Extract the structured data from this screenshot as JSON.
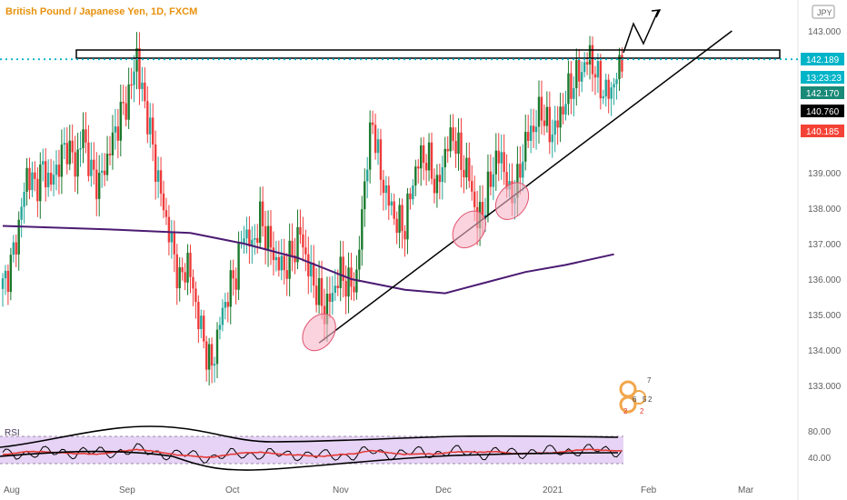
{
  "header": {
    "title": "British Pound / Japanese Yen, 1D, FXCM",
    "currency_badge": "JPY"
  },
  "colors": {
    "up": "#26a69a",
    "up_strong": "#1b7a2e",
    "down": "#ef3b3b",
    "ma": "#4b1a72",
    "resistance_line": "#00b4c8",
    "rsi_band": "#e6d3f5",
    "rsi_line": "#e53935"
  },
  "price_tags": {
    "last": "142.189",
    "countdown": "13:23:23",
    "bid": "142.170",
    "high": "140.760",
    "low": "140.185"
  },
  "rsi_pane": {
    "label": "RSI",
    "levels": [
      "80.00",
      "40.00"
    ]
  },
  "chart_data": {
    "type": "candlestick",
    "y_ticks": [
      143,
      142,
      141,
      140,
      139,
      138,
      137,
      136,
      135,
      134,
      133
    ],
    "y_tick_labels": [
      "143.000",
      "",
      "",
      "",
      "139.000",
      "138.000",
      "137.000",
      "136.000",
      "135.000",
      "134.000",
      "133.000"
    ],
    "x_tick_labels": [
      "Aug",
      "Sep",
      "Oct",
      "Nov",
      "Dec",
      "2021",
      "Feb",
      "Mar"
    ],
    "resistance_level": 142.2,
    "last_price": 142.189,
    "close_path": [
      [
        0,
        135.8
      ],
      [
        3,
        136.4
      ],
      [
        6,
        137.5
      ],
      [
        9,
        139.0
      ],
      [
        12,
        138.6
      ],
      [
        15,
        139.1
      ],
      [
        18,
        138.7
      ],
      [
        21,
        139.3
      ],
      [
        24,
        139.8
      ],
      [
        27,
        139.2
      ],
      [
        30,
        140.1
      ],
      [
        33,
        139.0
      ],
      [
        36,
        138.7
      ],
      [
        39,
        139.4
      ],
      [
        42,
        140.2
      ],
      [
        45,
        140.8
      ],
      [
        48,
        141.4
      ],
      [
        49,
        142.0
      ],
      [
        50,
        142.4
      ],
      [
        51,
        141.6
      ],
      [
        54,
        140.6
      ],
      [
        57,
        139.2
      ],
      [
        60,
        138.0
      ],
      [
        63,
        137.0
      ],
      [
        66,
        135.9
      ],
      [
        69,
        136.5
      ],
      [
        72,
        135.3
      ],
      [
        75,
        134.2
      ],
      [
        78,
        133.5
      ],
      [
        81,
        134.8
      ],
      [
        84,
        135.6
      ],
      [
        87,
        136.2
      ],
      [
        90,
        137.4
      ],
      [
        93,
        136.9
      ],
      [
        96,
        137.7
      ],
      [
        99,
        137.1
      ],
      [
        102,
        136.5
      ],
      [
        105,
        136.3
      ],
      [
        108,
        136.7
      ],
      [
        111,
        137.3
      ],
      [
        114,
        136.3
      ],
      [
        117,
        135.7
      ],
      [
        120,
        135.1
      ],
      [
        123,
        135.6
      ],
      [
        126,
        136.2
      ],
      [
        129,
        135.8
      ],
      [
        132,
        136.0
      ],
      [
        135,
        138.8
      ],
      [
        138,
        140.5
      ],
      [
        141,
        138.9
      ],
      [
        144,
        138.2
      ],
      [
        147,
        137.6
      ],
      [
        150,
        137.5
      ],
      [
        153,
        138.8
      ],
      [
        156,
        139.5
      ],
      [
        159,
        139.3
      ],
      [
        162,
        138.5
      ],
      [
        165,
        139.6
      ],
      [
        168,
        140.1
      ],
      [
        171,
        139.3
      ],
      [
        174,
        138.9
      ],
      [
        177,
        137.6
      ],
      [
        180,
        138.1
      ],
      [
        183,
        139.2
      ],
      [
        186,
        139.5
      ],
      [
        189,
        138.3
      ],
      [
        192,
        138.7
      ],
      [
        195,
        139.9
      ],
      [
        198,
        140.3
      ],
      [
        201,
        140.8
      ],
      [
        204,
        140.1
      ],
      [
        207,
        140.4
      ],
      [
        210,
        141.1
      ],
      [
        213,
        141.6
      ],
      [
        216,
        141.9
      ],
      [
        219,
        142.3
      ],
      [
        222,
        141.6
      ],
      [
        225,
        141.2
      ],
      [
        228,
        141.5
      ],
      [
        231,
        142.2
      ]
    ],
    "ma_path": [
      [
        0,
        137.5
      ],
      [
        40,
        137.4
      ],
      [
        70,
        137.3
      ],
      [
        90,
        137.0
      ],
      [
        110,
        136.6
      ],
      [
        130,
        136.0
      ],
      [
        150,
        135.7
      ],
      [
        165,
        135.6
      ],
      [
        180,
        135.9
      ],
      [
        195,
        136.2
      ],
      [
        210,
        136.4
      ],
      [
        228,
        136.7
      ]
    ],
    "trendline": {
      "from": [
        118,
        134.2
      ],
      "to": [
        272,
        143.0
      ]
    },
    "ellipses": [
      [
        118,
        134.5
      ],
      [
        174,
        137.4
      ],
      [
        190,
        138.2
      ]
    ],
    "rsi_base": 55
  }
}
